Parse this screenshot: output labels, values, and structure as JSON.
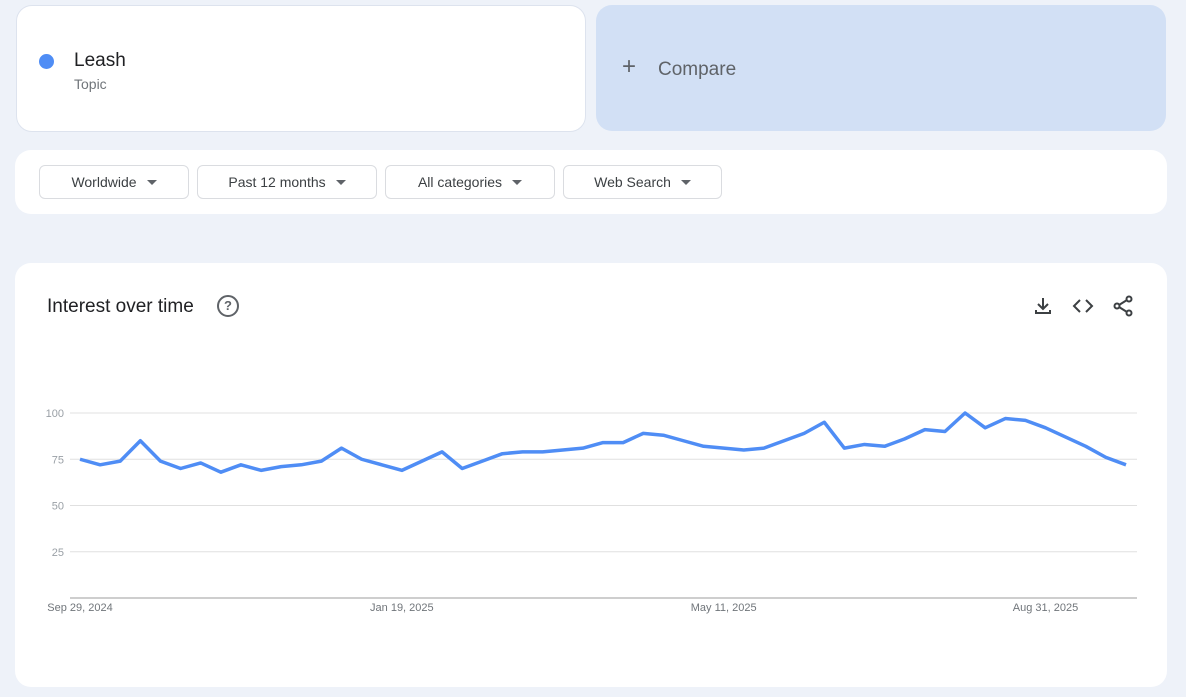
{
  "term": {
    "name": "Leash",
    "type": "Topic",
    "color": "#4f8df5"
  },
  "compare": {
    "label": "Compare",
    "icon": "plus-icon"
  },
  "filters": [
    {
      "label": "Worldwide"
    },
    {
      "label": "Past 12 months"
    },
    {
      "label": "All categories"
    },
    {
      "label": "Web Search"
    }
  ],
  "chart": {
    "title": "Interest over time",
    "help_icon": "help-icon",
    "actions": [
      "download-icon",
      "embed-code-icon",
      "share-icon"
    ]
  },
  "chart_data": {
    "type": "line",
    "ylim": [
      0,
      100
    ],
    "yticks": [
      25,
      50,
      75,
      100
    ],
    "grid": true,
    "xtick_labels": [
      "Sep 29, 2024",
      "Jan 19, 2025",
      "May 11, 2025",
      "Aug 31, 2025"
    ],
    "x_start": "2024-09-29",
    "x_step": "weekly",
    "series": [
      {
        "color": "#4f8df5",
        "values": [
          75,
          72,
          74,
          85,
          74,
          70,
          73,
          68,
          72,
          69,
          71,
          72,
          74,
          81,
          75,
          72,
          69,
          74,
          79,
          70,
          74,
          78,
          79,
          79,
          80,
          81,
          84,
          84,
          89,
          88,
          85,
          82,
          81,
          80,
          81,
          85,
          89,
          95,
          81,
          83,
          82,
          86,
          91,
          90,
          100,
          92,
          97,
          96,
          92,
          87,
          82,
          76,
          72
        ]
      }
    ]
  }
}
